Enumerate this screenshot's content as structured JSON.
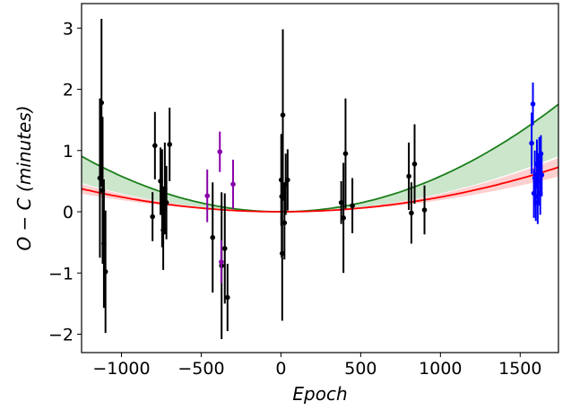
{
  "chart_data": {
    "type": "scatter",
    "title": "",
    "xlabel": "Epoch",
    "ylabel": "O − C (minutes)",
    "xlim": [
      -1250,
      1740
    ],
    "ylim": [
      -2.3,
      3.4
    ],
    "x_ticks": [
      -1000,
      -500,
      0,
      500,
      1000,
      1500
    ],
    "x_tick_labels": [
      "−1000",
      "−500",
      "0",
      "500",
      "1000",
      "1500"
    ],
    "y_ticks": [
      -2,
      -1,
      0,
      1,
      2,
      3
    ],
    "y_tick_labels": [
      "−2",
      "−1",
      "0",
      "1",
      "2",
      "3"
    ],
    "grid": false,
    "curves": [
      {
        "color": "#1b7f1b",
        "band_color": "#2e9a2e",
        "model": "quadratic",
        "coef": 5.8e-07,
        "band": [
          3e-07,
          5.8e-07
        ]
      },
      {
        "color": "#ff0000",
        "band_color": "#ff4444",
        "model": "quadratic",
        "coef": 2.4e-07,
        "band": [
          1.9e-07,
          2.9e-07
        ]
      }
    ],
    "series": [
      {
        "color": "#000000",
        "points": [
          {
            "x": -1135,
            "y": 0.55,
            "err": 1.3
          },
          {
            "x": -1125,
            "y": 1.78,
            "err": 1.37
          },
          {
            "x": -1118,
            "y": 0.35,
            "err": 1.2
          },
          {
            "x": -1110,
            "y": -0.52,
            "err": 1.05
          },
          {
            "x": -1100,
            "y": -0.98,
            "err": 1.0
          },
          {
            "x": -805,
            "y": -0.08,
            "err": 0.4
          },
          {
            "x": -790,
            "y": 1.08,
            "err": 0.55
          },
          {
            "x": -755,
            "y": 0.5,
            "err": 0.55
          },
          {
            "x": -745,
            "y": 0.22,
            "err": 0.8
          },
          {
            "x": -738,
            "y": -0.3,
            "err": 0.65
          },
          {
            "x": -728,
            "y": 0.38,
            "err": 0.75
          },
          {
            "x": -718,
            "y": 0.15,
            "err": 0.6
          },
          {
            "x": -698,
            "y": 1.1,
            "err": 0.6
          },
          {
            "x": -428,
            "y": -0.42,
            "err": 0.9
          },
          {
            "x": -372,
            "y": -0.88,
            "err": 1.2
          },
          {
            "x": -352,
            "y": -0.6,
            "err": 0.9
          },
          {
            "x": -335,
            "y": -1.4,
            "err": 0.55
          },
          {
            "x": 2,
            "y": 0.52,
            "err": 0.75
          },
          {
            "x": 5,
            "y": 0.25,
            "err": 1.0
          },
          {
            "x": 8,
            "y": -0.68,
            "err": 1.1
          },
          {
            "x": 12,
            "y": 1.58,
            "err": 1.4
          },
          {
            "x": 22,
            "y": -0.18,
            "err": 0.6
          },
          {
            "x": 30,
            "y": 0.45,
            "err": 0.5
          },
          {
            "x": 42,
            "y": 0.52,
            "err": 0.5
          },
          {
            "x": 378,
            "y": 0.15,
            "err": 0.35
          },
          {
            "x": 392,
            "y": -0.1,
            "err": 0.9
          },
          {
            "x": 405,
            "y": 0.95,
            "err": 0.9
          },
          {
            "x": 448,
            "y": 0.1,
            "err": 0.45
          },
          {
            "x": 802,
            "y": 0.58,
            "err": 0.55
          },
          {
            "x": 818,
            "y": -0.02,
            "err": 0.5
          },
          {
            "x": 838,
            "y": 0.78,
            "err": 0.65
          },
          {
            "x": 900,
            "y": 0.03,
            "err": 0.4
          }
        ]
      },
      {
        "color": "#8800aa",
        "points": [
          {
            "x": -462,
            "y": 0.26,
            "err": 0.43
          },
          {
            "x": -383,
            "y": 0.98,
            "err": 0.33
          },
          {
            "x": -374,
            "y": -0.82,
            "err": 0.35
          },
          {
            "x": -300,
            "y": 0.45,
            "err": 0.4
          }
        ]
      },
      {
        "color": "#0000ff",
        "points": [
          {
            "x": 1572,
            "y": 1.12,
            "err": 0.5
          },
          {
            "x": 1580,
            "y": 1.76,
            "err": 0.35
          },
          {
            "x": 1586,
            "y": 0.3,
            "err": 0.4
          },
          {
            "x": 1592,
            "y": 0.55,
            "err": 0.45
          },
          {
            "x": 1598,
            "y": 0.25,
            "err": 0.4
          },
          {
            "x": 1605,
            "y": 0.78,
            "err": 0.4
          },
          {
            "x": 1610,
            "y": 0.15,
            "err": 0.35
          },
          {
            "x": 1615,
            "y": 0.5,
            "err": 0.4
          },
          {
            "x": 1620,
            "y": 0.92,
            "err": 0.3
          },
          {
            "x": 1626,
            "y": 0.3,
            "err": 0.35
          },
          {
            "x": 1630,
            "y": 0.95,
            "err": 0.3
          },
          {
            "x": 1635,
            "y": 0.6,
            "err": 0.35
          }
        ]
      }
    ]
  }
}
